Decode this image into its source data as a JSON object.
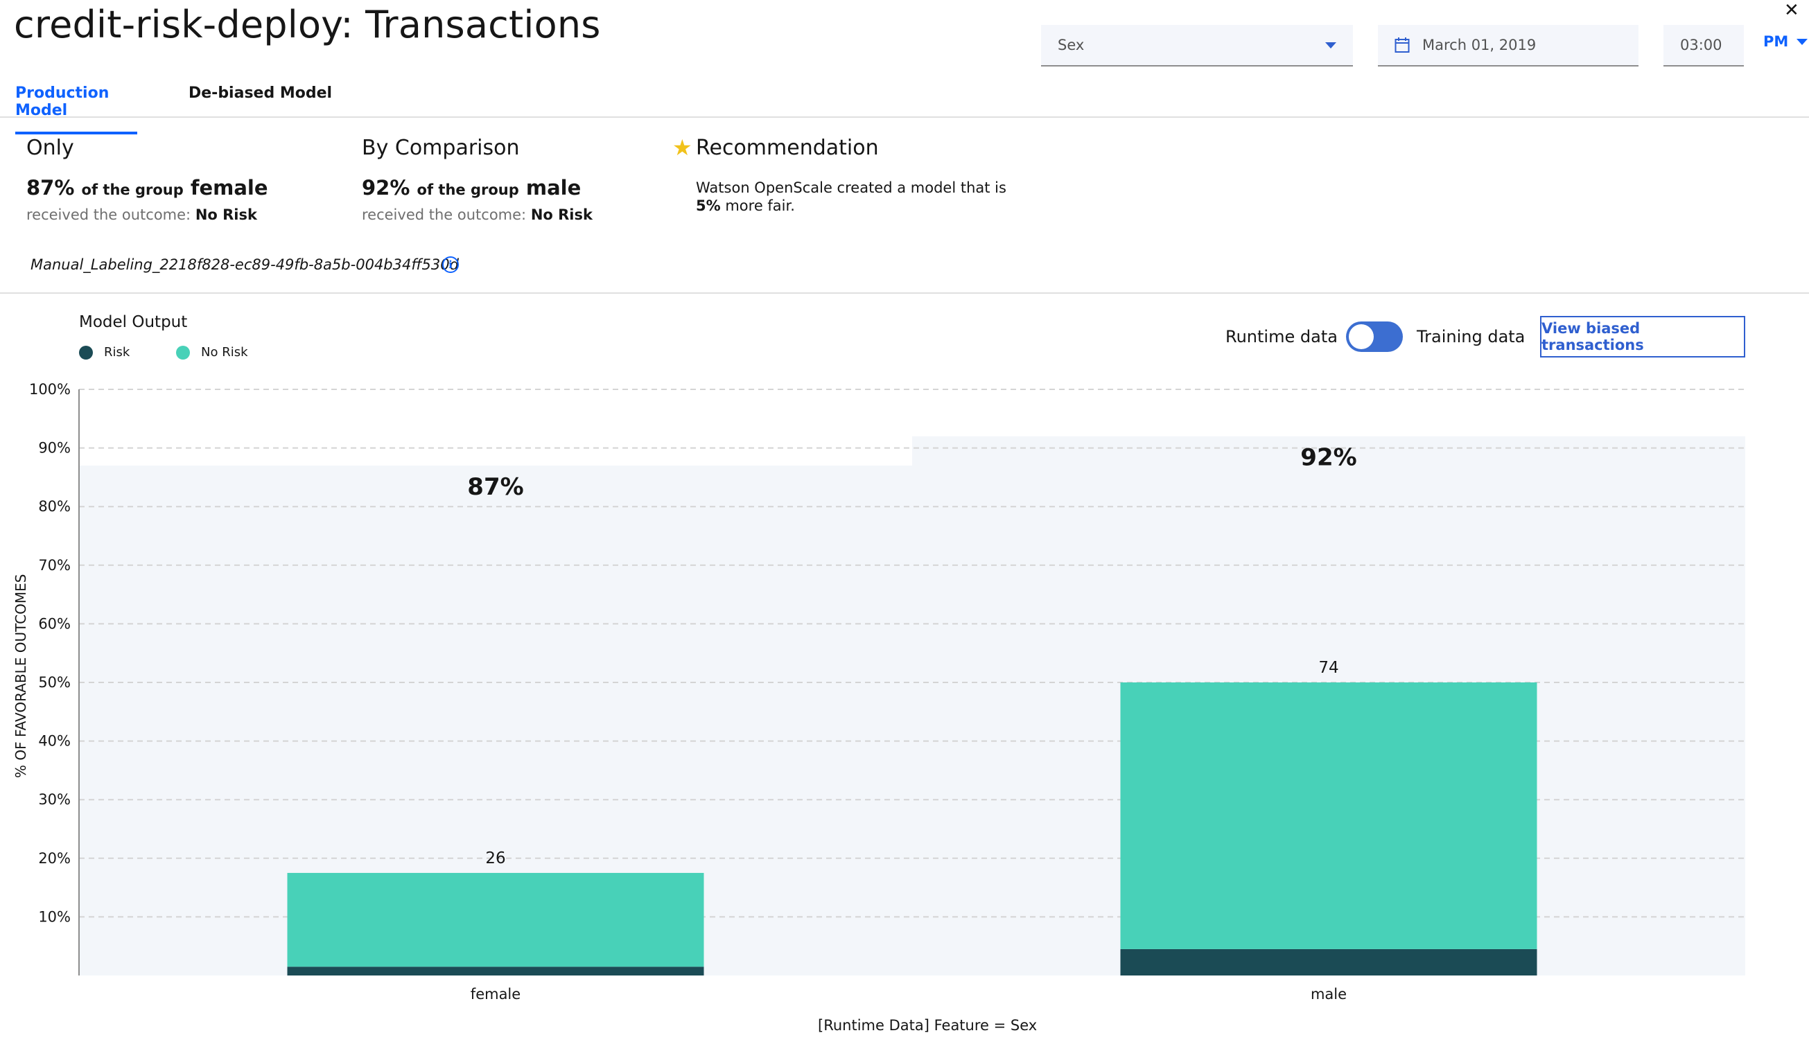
{
  "header": {
    "title": "credit-risk-deploy: Transactions",
    "close_icon": "close-icon",
    "feature_select": "Sex",
    "date": "March 01, 2019",
    "time": "03:00",
    "ampm": "PM"
  },
  "tabs": [
    {
      "label": "Production Model",
      "active": true
    },
    {
      "label": "De-biased Model",
      "active": false
    }
  ],
  "summary": {
    "only": {
      "heading": "Only",
      "percent": "87%",
      "of_group": "of the group",
      "group": "female",
      "received": "received the outcome:",
      "outcome": "No Risk"
    },
    "comparison": {
      "heading": "By Comparison",
      "percent": "92%",
      "of_group": "of the group",
      "group": "male",
      "received": "received the outcome:",
      "outcome": "No Risk"
    },
    "recommendation": {
      "heading": "Recommendation",
      "text": "Watson OpenScale created a model that is",
      "bold": "5%",
      "text_end": "more fair."
    }
  },
  "model_id": "Manual_Labeling_2218f828-ec89-49fb-8a5b-004b34ff530d",
  "legend": {
    "title": "Model Output",
    "items": [
      {
        "label": "Risk",
        "color": "#1b4b55"
      },
      {
        "label": "No Risk",
        "color": "#48d1b8"
      }
    ]
  },
  "toggle": {
    "left_label": "Runtime data",
    "right_label": "Training data"
  },
  "view_biased_button": "View biased transactions",
  "chart_data": {
    "type": "bar",
    "categories": [
      "female",
      "male"
    ],
    "favorable_percent": [
      87,
      92
    ],
    "favorable_labels": [
      "87%",
      "92%"
    ],
    "totals": [
      26,
      74
    ],
    "total_labels": [
      "26",
      "74"
    ],
    "series": [
      {
        "name": "Risk",
        "values": [
          1.5,
          4.5
        ],
        "color": "#1b4b55"
      },
      {
        "name": "No Risk",
        "values": [
          16,
          45.5
        ],
        "color": "#48d1b8"
      }
    ],
    "ylim": [
      0,
      100
    ],
    "yticks": [
      10,
      20,
      30,
      40,
      50,
      60,
      70,
      80,
      90,
      100
    ],
    "ytick_labels": [
      "10%",
      "20%",
      "30%",
      "40%",
      "50%",
      "60%",
      "70%",
      "80%",
      "90%",
      "100%"
    ],
    "ylabel": "% OF FAVORABLE OUTCOMES",
    "xlabel": "[Runtime Data] Feature = Sex",
    "grid": true
  }
}
